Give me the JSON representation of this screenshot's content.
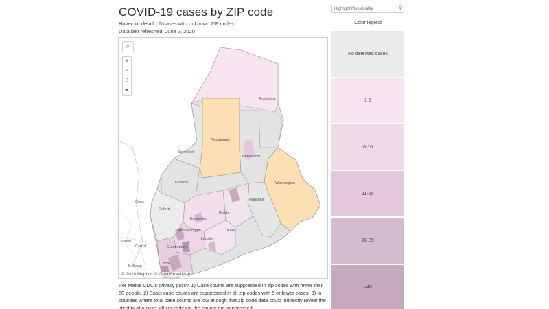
{
  "header": {
    "title": "COVID-19 cases by ZIP code",
    "hover_label": "Hover for detail",
    "separator": "|",
    "unknown_zip": "5 cases with unknown ZIP codes",
    "refreshed": "Data last refreshed: June 2, 2020"
  },
  "search": {
    "placeholder": "Highlight Municipality"
  },
  "legend": {
    "title": "Color legend",
    "items": [
      {
        "label": "No detected cases",
        "color": "#ebebeb"
      },
      {
        "label": "1-5",
        "color": "#f8e4f1"
      },
      {
        "label": "6-10",
        "color": "#efdae8"
      },
      {
        "label": "11-25",
        "color": "#e2c8da"
      },
      {
        "label": "26-39",
        "color": "#d4bbcf"
      },
      {
        "label": ">40",
        "color": "#c7aac0"
      }
    ]
  },
  "map": {
    "counties": {
      "aroostook": "Aroostook",
      "piscataquis": "Piscataquis",
      "somerset": "Somerset",
      "penobscot": "Penobscot",
      "franklin": "Franklin",
      "washington": "Washington",
      "hancock": "Hancock",
      "oxford": "Oxford",
      "kennebec": "Kennebec",
      "waldo": "Waldo",
      "androscoggin": "Androscoggin",
      "knox": "Knox",
      "lincoln": "Lincoln",
      "cumberland": "Cumberland",
      "york": "York"
    },
    "places": {
      "coos": "Coos",
      "carroll": "Carroll",
      "grafton": "Grafton",
      "belknap": "Belknap"
    },
    "attribution": "© 2020 Mapbox © OpenStreetMap",
    "controls": {
      "zoom_in": "+",
      "zoom_out": "−",
      "home": "⌂",
      "play": "▶",
      "search": "⌕"
    },
    "colors": {
      "no_cases": "#e3e3e3",
      "highlight": "#fddfb4",
      "border": "#9a9a9a"
    }
  },
  "note": "Per Maine CDC's privacy policy, 1) Case counts are suppressed in zip codes with fewer than 50 people. 2) Exact case counts are suppressed in all zip codes with 5 or fewer cases. 3) In counties where total case counts are low enough that zip code data could indirectly reveal the identity of a case, all zip codes in the county are suppressed."
}
